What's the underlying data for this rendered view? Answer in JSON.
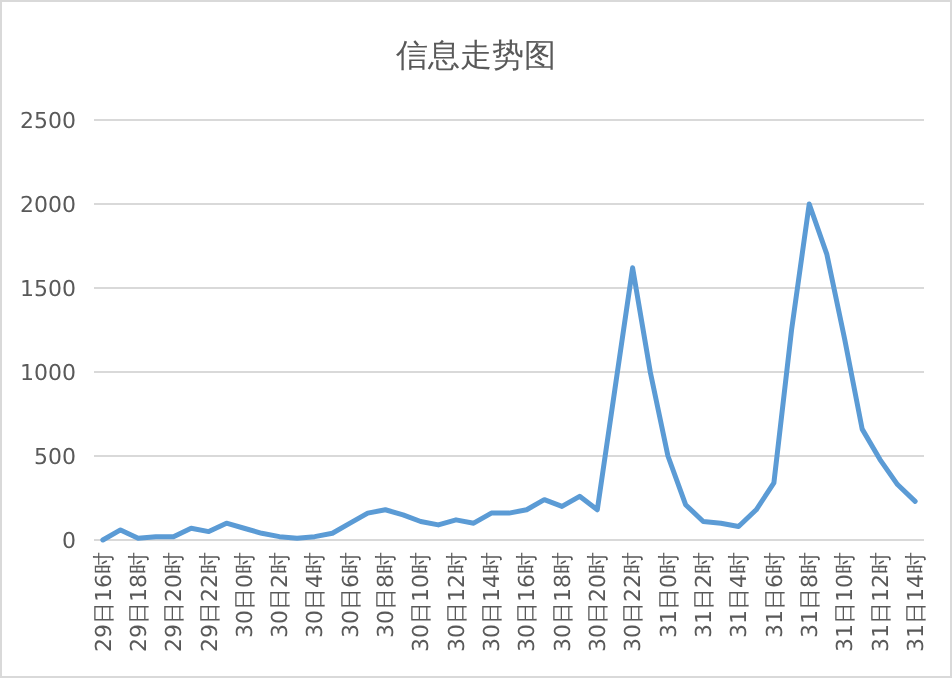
{
  "chart_data": {
    "type": "line",
    "title": "信息走势图",
    "categories": [
      "29日16时",
      null,
      "29日18时",
      null,
      "29日20时",
      null,
      "29日22时",
      null,
      "30日0时",
      null,
      "30日2时",
      null,
      "30日4时",
      null,
      "30日6时",
      null,
      "30日8时",
      null,
      "30日10时",
      null,
      "30日12时",
      null,
      "30日14时",
      null,
      "30日16时",
      null,
      "30日18时",
      null,
      "30日20时",
      null,
      "30日22时",
      null,
      "31日0时",
      null,
      "31日2时",
      null,
      "31日4时",
      null,
      "31日6时",
      null,
      "31日8时",
      null,
      "31日10时",
      null,
      "31日12时",
      null,
      "31日14时"
    ],
    "series": [
      {
        "color": "#5b9bd5",
        "values": [
          0,
          60,
          10,
          20,
          20,
          70,
          50,
          100,
          70,
          40,
          20,
          10,
          20,
          40,
          100,
          160,
          180,
          150,
          110,
          90,
          120,
          100,
          160,
          160,
          180,
          240,
          200,
          260,
          180,
          900,
          1620,
          1000,
          500,
          210,
          110,
          100,
          80,
          180,
          340,
          1250,
          2000,
          1700,
          1200,
          660,
          480,
          330,
          230
        ]
      }
    ],
    "ylim": [
      0,
      2500
    ],
    "yticks": [
      0,
      500,
      1000,
      1500,
      2000,
      2500
    ],
    "grid": "y",
    "marker": "none",
    "line_style": "solid"
  }
}
